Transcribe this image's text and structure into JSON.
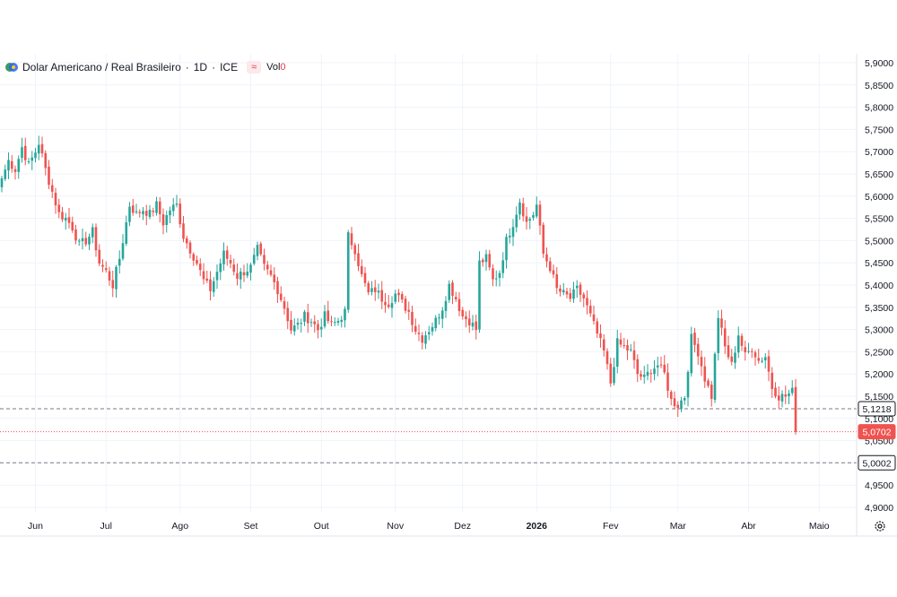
{
  "legend": {
    "symbol": "Dolar Americano / Real Brasileiro",
    "interval": "1D",
    "exchange": "ICE",
    "indicator_icon": "approx-icon",
    "volume_label": "Vol",
    "volume_value": "0"
  },
  "colors": {
    "up": "#26a69a",
    "down": "#ef5350",
    "grid": "#f0f3fa",
    "axis_text": "#131722",
    "current_price_bg": "#ef5350",
    "marker_bg": "#131722"
  },
  "chart_data": {
    "type": "candlestick",
    "title": "Dolar Americano / Real Brasileiro · 1D · ICE",
    "ylim": [
      4.87,
      5.915
    ],
    "y_ticks": [
      "5,9000",
      "5,8500",
      "5,8000",
      "5,7500",
      "5,7000",
      "5,6500",
      "5,6000",
      "5,5500",
      "5,5000",
      "5,4500",
      "5,4000",
      "5,3500",
      "5,3000",
      "5,2500",
      "5,2000",
      "5,1500",
      "5,1000",
      "5,0500",
      "5,0000",
      "4,9500",
      "4,9000"
    ],
    "x_ticks": [
      {
        "label": "Jun",
        "index": 10,
        "bold": false
      },
      {
        "label": "Jul",
        "index": 31,
        "bold": false
      },
      {
        "label": "Ago",
        "index": 53,
        "bold": false
      },
      {
        "label": "Set",
        "index": 74,
        "bold": false
      },
      {
        "label": "Out",
        "index": 95,
        "bold": false
      },
      {
        "label": "Nov",
        "index": 117,
        "bold": false
      },
      {
        "label": "Dez",
        "index": 137,
        "bold": false
      },
      {
        "label": "2026",
        "index": 159,
        "bold": true
      },
      {
        "label": "Fev",
        "index": 181,
        "bold": false
      },
      {
        "label": "Mar",
        "index": 201,
        "bold": false
      },
      {
        "label": "Abr",
        "index": 222,
        "bold": false
      },
      {
        "label": "Maio",
        "index": 243,
        "bold": false
      }
    ],
    "close_anchors": [
      [
        0,
        5.64
      ],
      [
        2,
        5.68
      ],
      [
        4,
        5.66
      ],
      [
        6,
        5.71
      ],
      [
        8,
        5.67
      ],
      [
        10,
        5.7
      ],
      [
        11,
        5.72
      ],
      [
        13,
        5.66
      ],
      [
        15,
        5.61
      ],
      [
        17,
        5.56
      ],
      [
        19,
        5.55
      ],
      [
        21,
        5.53
      ],
      [
        23,
        5.49
      ],
      [
        25,
        5.5
      ],
      [
        27,
        5.52
      ],
      [
        29,
        5.45
      ],
      [
        31,
        5.43
      ],
      [
        33,
        5.4
      ],
      [
        35,
        5.46
      ],
      [
        37,
        5.54
      ],
      [
        38,
        5.58
      ],
      [
        40,
        5.56
      ],
      [
        42,
        5.57
      ],
      [
        44,
        5.56
      ],
      [
        46,
        5.58
      ],
      [
        48,
        5.54
      ],
      [
        50,
        5.57
      ],
      [
        52,
        5.58
      ],
      [
        54,
        5.51
      ],
      [
        56,
        5.48
      ],
      [
        58,
        5.45
      ],
      [
        60,
        5.41
      ],
      [
        62,
        5.39
      ],
      [
        64,
        5.43
      ],
      [
        66,
        5.47
      ],
      [
        68,
        5.45
      ],
      [
        70,
        5.42
      ],
      [
        72,
        5.43
      ],
      [
        74,
        5.44
      ],
      [
        76,
        5.48
      ],
      [
        78,
        5.44
      ],
      [
        80,
        5.42
      ],
      [
        82,
        5.39
      ],
      [
        84,
        5.35
      ],
      [
        86,
        5.3
      ],
      [
        88,
        5.31
      ],
      [
        90,
        5.33
      ],
      [
        92,
        5.32
      ],
      [
        94,
        5.3
      ],
      [
        96,
        5.33
      ],
      [
        98,
        5.31
      ],
      [
        100,
        5.32
      ],
      [
        102,
        5.34
      ],
      [
        103,
        5.51
      ],
      [
        105,
        5.48
      ],
      [
        107,
        5.42
      ],
      [
        109,
        5.38
      ],
      [
        111,
        5.39
      ],
      [
        113,
        5.37
      ],
      [
        115,
        5.36
      ],
      [
        117,
        5.38
      ],
      [
        119,
        5.36
      ],
      [
        121,
        5.34
      ],
      [
        123,
        5.3
      ],
      [
        125,
        5.28
      ],
      [
        127,
        5.3
      ],
      [
        129,
        5.32
      ],
      [
        131,
        5.35
      ],
      [
        133,
        5.4
      ],
      [
        135,
        5.37
      ],
      [
        137,
        5.33
      ],
      [
        139,
        5.32
      ],
      [
        141,
        5.3
      ],
      [
        142,
        5.45
      ],
      [
        144,
        5.46
      ],
      [
        146,
        5.41
      ],
      [
        148,
        5.43
      ],
      [
        150,
        5.5
      ],
      [
        152,
        5.54
      ],
      [
        154,
        5.59
      ],
      [
        156,
        5.54
      ],
      [
        158,
        5.56
      ],
      [
        159,
        5.58
      ],
      [
        161,
        5.47
      ],
      [
        163,
        5.44
      ],
      [
        165,
        5.39
      ],
      [
        167,
        5.38
      ],
      [
        169,
        5.37
      ],
      [
        171,
        5.39
      ],
      [
        173,
        5.37
      ],
      [
        175,
        5.33
      ],
      [
        177,
        5.29
      ],
      [
        179,
        5.25
      ],
      [
        181,
        5.18
      ],
      [
        183,
        5.27
      ],
      [
        185,
        5.26
      ],
      [
        187,
        5.25
      ],
      [
        189,
        5.2
      ],
      [
        191,
        5.19
      ],
      [
        193,
        5.21
      ],
      [
        195,
        5.22
      ],
      [
        197,
        5.2
      ],
      [
        199,
        5.14
      ],
      [
        201,
        5.13
      ],
      [
        203,
        5.15
      ],
      [
        205,
        5.28
      ],
      [
        207,
        5.25
      ],
      [
        209,
        5.19
      ],
      [
        211,
        5.15
      ],
      [
        213,
        5.33
      ],
      [
        215,
        5.26
      ],
      [
        217,
        5.22
      ],
      [
        219,
        5.29
      ],
      [
        221,
        5.24
      ],
      [
        223,
        5.26
      ],
      [
        225,
        5.23
      ],
      [
        227,
        5.24
      ],
      [
        229,
        5.17
      ],
      [
        231,
        5.15
      ],
      [
        233,
        5.15
      ],
      [
        235,
        5.16
      ],
      [
        236,
        5.07
      ]
    ],
    "price_markers": [
      {
        "value": 5.1218,
        "label": "5,1218",
        "line": "dashed",
        "style": "dark"
      },
      {
        "value": 5.0702,
        "label": "5,0702",
        "line": "dotted",
        "style": "current"
      },
      {
        "value": 5.0002,
        "label": "5,0002",
        "line": "dashed",
        "style": "dark"
      }
    ],
    "grid": true,
    "legend_position": "top-left"
  }
}
